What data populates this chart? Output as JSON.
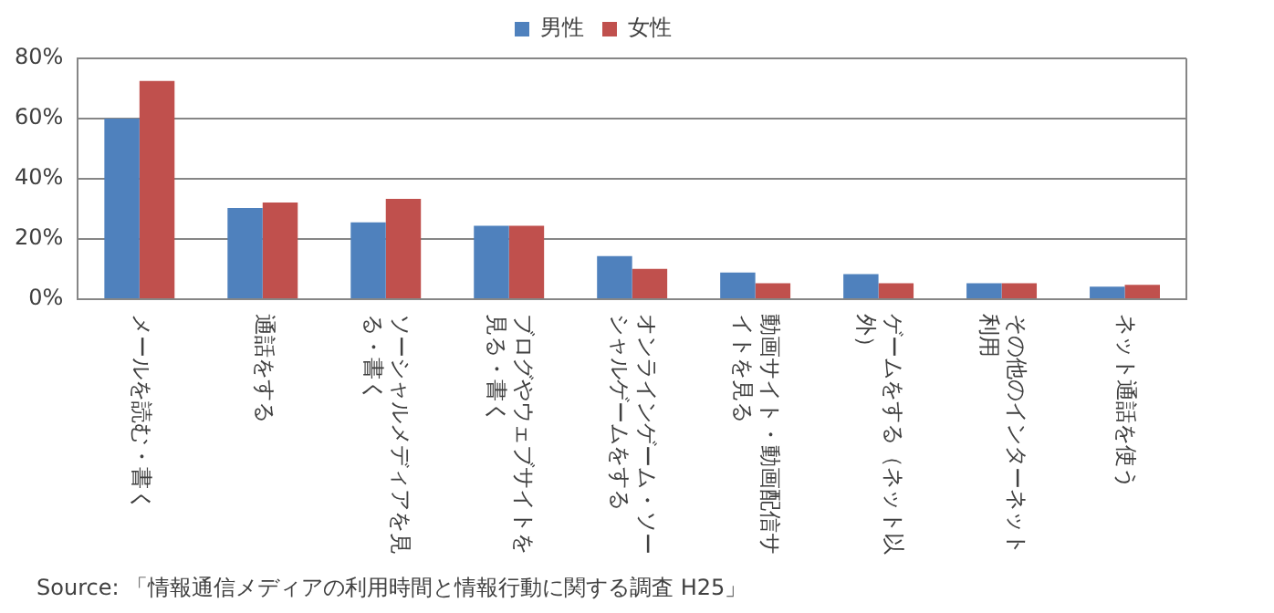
{
  "chart_data": {
    "type": "bar",
    "categories": [
      "メールを読む・書く",
      "通話をする",
      "ソーシャルメディアを見る・書く",
      "ブログやウェブサイトを見る・書く",
      "オンラインゲーム・ソーシャルゲームをする",
      "動画サイト・動画配信サイトを見る",
      "ゲームをする（ネット以外）",
      "その他のインターネット利用",
      "ネット通話を使う"
    ],
    "series": [
      {
        "name": "男性",
        "color": "#4f81bd",
        "values": [
          60,
          30.3,
          25.5,
          24.4,
          14.3,
          8.9,
          8.3,
          5.3,
          4.2
        ]
      },
      {
        "name": "女性",
        "color": "#c0504d",
        "values": [
          72.5,
          32.1,
          33.3,
          24.4,
          10.1,
          5.3,
          5.3,
          5.3,
          4.8
        ]
      }
    ],
    "ylim": [
      0,
      80
    ],
    "yticks": [
      {
        "value": 0,
        "label": "0%"
      },
      {
        "value": 20,
        "label": "20%"
      },
      {
        "value": 40,
        "label": "40%"
      },
      {
        "value": 60,
        "label": "60%"
      },
      {
        "value": 80,
        "label": "80%"
      }
    ],
    "grid": "y",
    "legend": "top",
    "annotations": [
      "Source: 「情報通信メディアの利用時間と情報行動に関する調査 H25」"
    ]
  }
}
